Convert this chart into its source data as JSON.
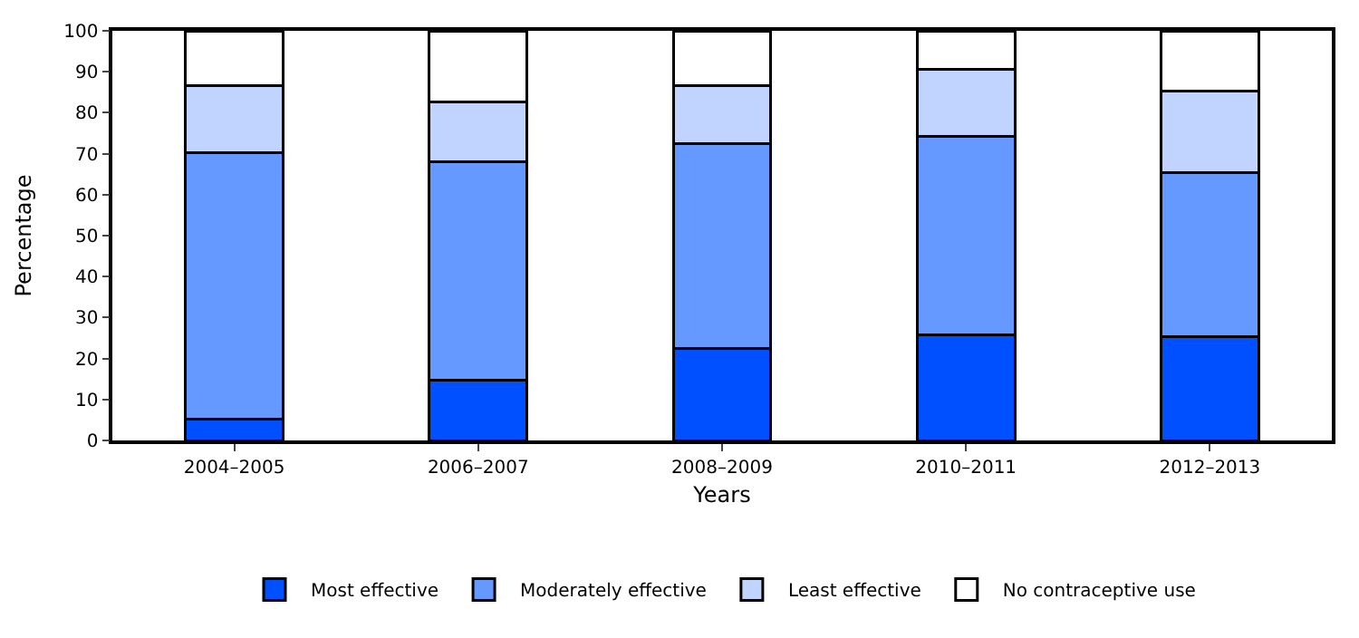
{
  "chart_data": {
    "type": "bar",
    "stacked": true,
    "xlabel": "Years",
    "ylabel": "Percentage",
    "categories": [
      "2004–2005",
      "2006–2007",
      "2008–2009",
      "2010–2011",
      "2012–2013"
    ],
    "series": [
      {
        "name": "Most effective",
        "color": "#0050ff",
        "values": [
          5.3,
          14.8,
          22.5,
          25.8,
          25.3
        ]
      },
      {
        "name": "Moderately effective",
        "color": "#6699ff",
        "values": [
          65.0,
          53.2,
          50.0,
          48.5,
          40.0
        ]
      },
      {
        "name": "Least effective",
        "color": "#c0d4ff",
        "values": [
          16.4,
          14.7,
          14.1,
          16.3,
          20.0
        ]
      },
      {
        "name": "No contraceptive use",
        "color": "#ffffff",
        "values": [
          13.3,
          17.3,
          13.4,
          9.4,
          14.7
        ]
      }
    ],
    "ylim": [
      0,
      100
    ],
    "yticks": [
      0,
      10,
      20,
      30,
      40,
      50,
      60,
      70,
      80,
      90,
      100
    ],
    "legend": "bottom"
  }
}
